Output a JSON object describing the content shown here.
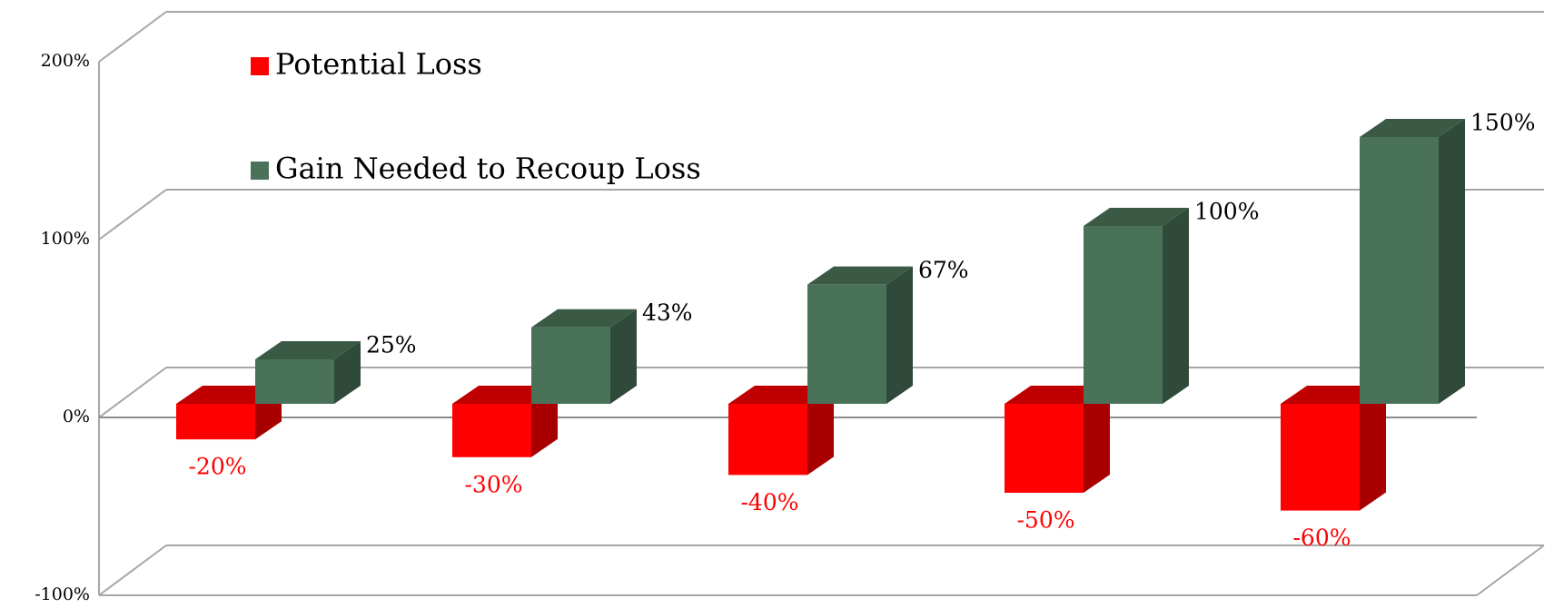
{
  "chart_data": {
    "type": "bar3d",
    "series": [
      {
        "name": "Potential Loss",
        "color": "#ff0000",
        "values": [
          -20,
          -30,
          -40,
          -50,
          -60
        ],
        "value_labels": [
          "-20%",
          "-30%",
          "-40%",
          "-50%",
          "-60%"
        ]
      },
      {
        "name": "Gain Needed to Recoup Loss",
        "color": "#4a7259",
        "values": [
          25,
          43,
          67,
          100,
          150
        ],
        "value_labels": [
          "25%",
          "43%",
          "67%",
          "100%",
          "150%"
        ]
      }
    ],
    "ylim": [
      -100,
      200
    ],
    "yticks": [
      {
        "value": -100,
        "label": "-100%"
      },
      {
        "value": 0,
        "label": "0%"
      },
      {
        "value": 100,
        "label": "100%"
      },
      {
        "value": 200,
        "label": "200%"
      }
    ],
    "grid": true,
    "legend": "top-left"
  }
}
